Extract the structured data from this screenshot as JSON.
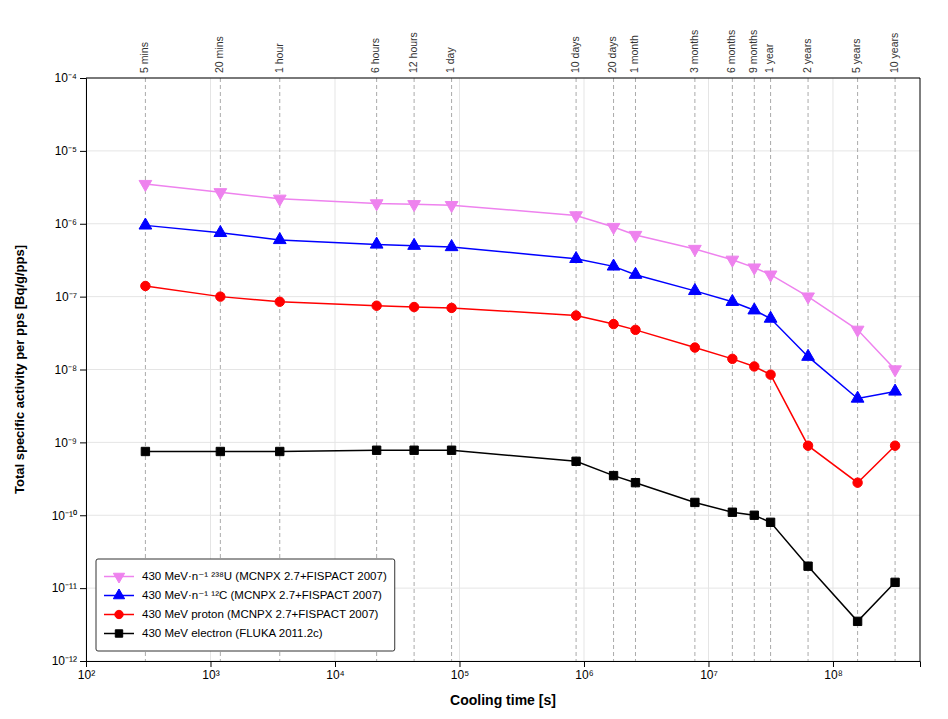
{
  "chart_data": {
    "type": "line",
    "xlabel": "Cooling time [s]",
    "ylabel": "Total specific activity per pps [Bq/g/pps]",
    "log": true,
    "grid": true,
    "legend": "lower left",
    "xlim": [
      100.0,
      500000000.0
    ],
    "ylim": [
      1e-12,
      0.0001
    ],
    "xticks": [
      {
        "value": 100.0,
        "label": "10²"
      },
      {
        "value": 1000.0,
        "label": "10³"
      },
      {
        "value": 10000.0,
        "label": "10⁴"
      },
      {
        "value": 100000.0,
        "label": "10⁵"
      },
      {
        "value": 1000000.0,
        "label": "10⁶"
      },
      {
        "value": 10000000.0,
        "label": "10⁷"
      },
      {
        "value": 100000000.0,
        "label": "10⁸"
      }
    ],
    "yticks": [
      {
        "value": 1e-12,
        "label": "10⁻¹²"
      },
      {
        "value": 1e-11,
        "label": "10⁻¹¹"
      },
      {
        "value": 1e-10,
        "label": "10⁻¹⁰"
      },
      {
        "value": 1e-09,
        "label": "10⁻⁹"
      },
      {
        "value": 1e-08,
        "label": "10⁻⁸"
      },
      {
        "value": 1e-07,
        "label": "10⁻⁷"
      },
      {
        "value": 1e-06,
        "label": "10⁻⁶"
      },
      {
        "value": 1e-05,
        "label": "10⁻⁵"
      },
      {
        "value": 0.0001,
        "label": "10⁻⁴"
      }
    ],
    "x2ticks": [
      {
        "value": 300,
        "label": "5 mins"
      },
      {
        "value": 1200,
        "label": "20 mins"
      },
      {
        "value": 3600,
        "label": "1 hour"
      },
      {
        "value": 21600,
        "label": "6 hours"
      },
      {
        "value": 43200,
        "label": "12 hours"
      },
      {
        "value": 86400,
        "label": "1 day"
      },
      {
        "value": 864000,
        "label": "10 days"
      },
      {
        "value": 1728000,
        "label": "20 days"
      },
      {
        "value": 2592000,
        "label": "1 month"
      },
      {
        "value": 7776000,
        "label": "3 months"
      },
      {
        "value": 15552000,
        "label": "6 months"
      },
      {
        "value": 23328000,
        "label": "9 months"
      },
      {
        "value": 31536000,
        "label": "1 year"
      },
      {
        "value": 63072000,
        "label": "2 years"
      },
      {
        "value": 157680000,
        "label": "5 years"
      },
      {
        "value": 315360000,
        "label": "10 years"
      }
    ],
    "x": [
      300,
      1200,
      3600,
      21600,
      43200,
      86400,
      864000,
      1728000,
      2592000,
      7776000,
      15552000,
      23328000,
      31536000,
      63072000,
      157680000,
      315360000
    ],
    "series": [
      {
        "name": "430 MeV·n⁻¹ ²³⁸U (MCNPX 2.7+FISPACT 2007)",
        "color": "#ee82ee",
        "marker": "triangle-down",
        "values": [
          3.5e-06,
          2.7e-06,
          2.2e-06,
          1.9e-06,
          1.85e-06,
          1.8e-06,
          1.3e-06,
          9e-07,
          7e-07,
          4.5e-07,
          3.2e-07,
          2.5e-07,
          2e-07,
          1e-07,
          3.5e-08,
          1e-08
        ]
      },
      {
        "name": "430 MeV·n⁻¹ ¹²C (MCNPX 2.7+FISPACT 2007)",
        "color": "#0000ff",
        "marker": "triangle",
        "values": [
          9.5e-07,
          7.5e-07,
          6e-07,
          5.2e-07,
          5e-07,
          4.8e-07,
          3.3e-07,
          2.6e-07,
          2e-07,
          1.2e-07,
          8.5e-08,
          6.5e-08,
          5e-08,
          1.5e-08,
          4e-09,
          5e-09
        ]
      },
      {
        "name": "430 MeV proton (MCNPX 2.7+FISPACT 2007)",
        "color": "#ff0000",
        "marker": "circle",
        "values": [
          1.4e-07,
          1e-07,
          8.5e-08,
          7.5e-08,
          7.2e-08,
          7e-08,
          5.5e-08,
          4.2e-08,
          3.5e-08,
          2e-08,
          1.4e-08,
          1.1e-08,
          8.5e-09,
          9e-10,
          2.8e-10,
          9e-10
        ]
      },
      {
        "name": "430 MeV electron (FLUKA 2011.2c)",
        "color": "#000000",
        "marker": "square",
        "values": [
          7.5e-10,
          7.5e-10,
          7.5e-10,
          7.8e-10,
          7.8e-10,
          7.8e-10,
          5.5e-10,
          3.5e-10,
          2.8e-10,
          1.5e-10,
          1.1e-10,
          1e-10,
          8e-11,
          2e-11,
          3.5e-12,
          1.2e-11
        ]
      }
    ]
  }
}
